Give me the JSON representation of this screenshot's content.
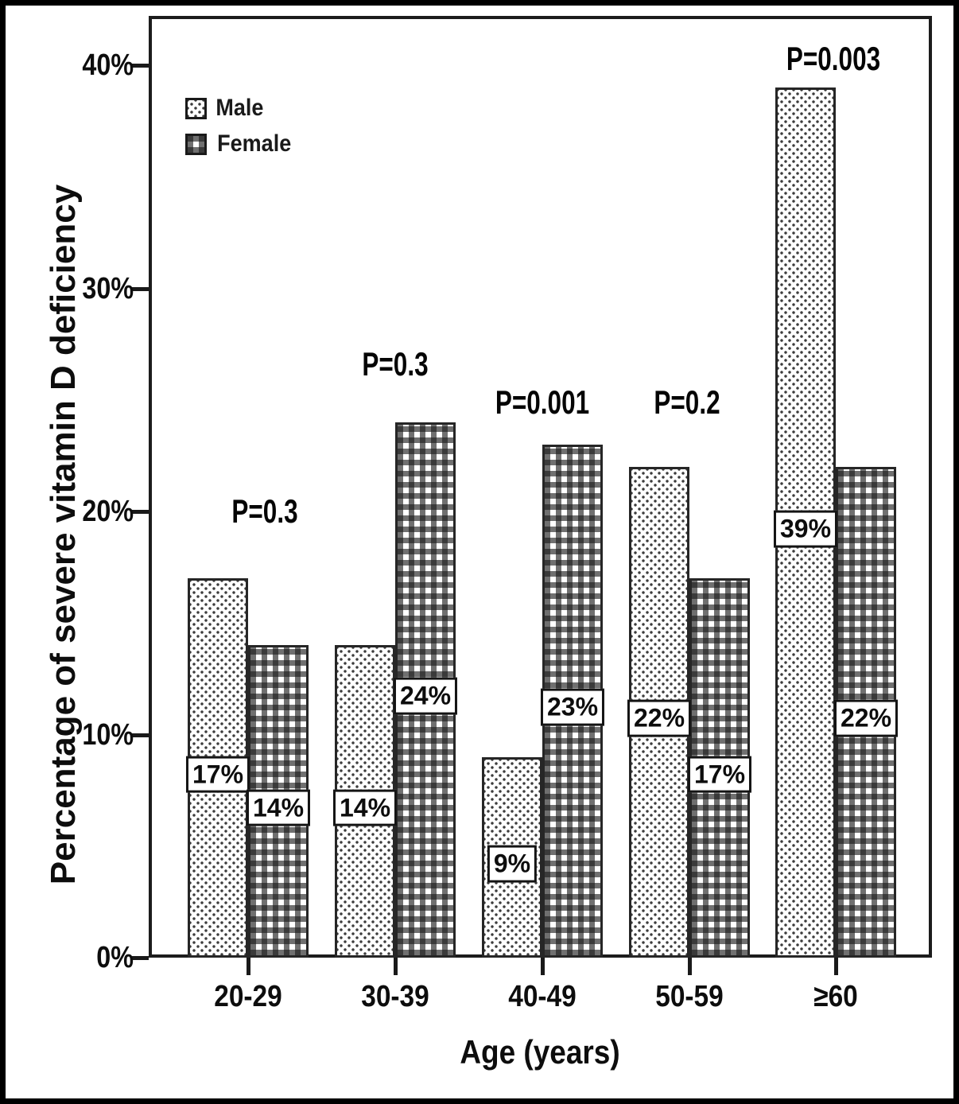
{
  "figure": {
    "background_color": "#ffffff",
    "frame_color": "#000000",
    "bar_outline_color": "#262626",
    "text_color": "#0d0d0d"
  },
  "chart_data": {
    "type": "bar",
    "categories": [
      "20-29",
      "30-39",
      "40-49",
      "50-59",
      "≥60"
    ],
    "series": [
      {
        "name": "Male",
        "pattern": "dots",
        "values": [
          17,
          14,
          9,
          22,
          39
        ]
      },
      {
        "name": "Female",
        "pattern": "check",
        "values": [
          14,
          24,
          23,
          17,
          22
        ]
      }
    ],
    "bar_label_format": "{value}%",
    "annotations": [
      {
        "text": "P=0.3",
        "category_index": 0,
        "y_value": 20.0,
        "dx": 21
      },
      {
        "text": "P=0.3",
        "category_index": 1,
        "y_value": 26.6,
        "dx": 0
      },
      {
        "text": "P=0.001",
        "category_index": 2,
        "y_value": 24.9,
        "dx": 0
      },
      {
        "text": "P=0.2",
        "category_index": 3,
        "y_value": 24.9,
        "dx": -3
      },
      {
        "text": "P=0.003",
        "category_index": 4,
        "y_value": 40.3,
        "dx": -3
      }
    ],
    "xlabel": "Age (years)",
    "ylabel": "Percentage of severe vitamin D deficiency",
    "yticks": [
      {
        "value": 0,
        "label": "0%"
      },
      {
        "value": 10,
        "label": "10%"
      },
      {
        "value": 20,
        "label": "20%"
      },
      {
        "value": 30,
        "label": "30%"
      },
      {
        "value": 40,
        "label": "40%"
      }
    ],
    "ylim": [
      0,
      40
    ],
    "grid": false,
    "legend_position": "top-left"
  }
}
